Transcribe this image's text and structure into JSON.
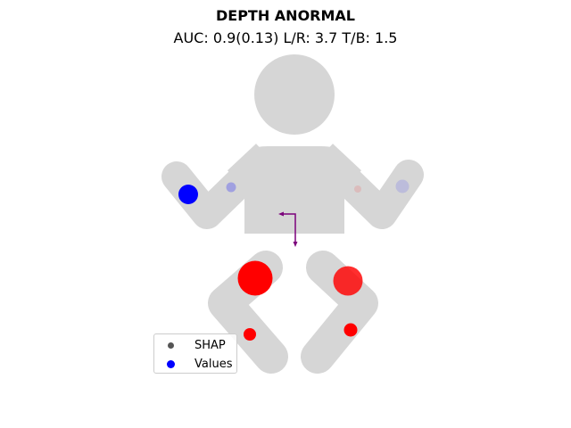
{
  "title": "DEPTH ANORMAL",
  "subtitle": "AUC: 0.9(0.13) L/R: 3.7 T/B: 1.5",
  "body_color": "#d6d6d6",
  "arrow_color": "#7b007b",
  "legend": {
    "items": [
      {
        "label": "SHAP",
        "color": "#555555"
      },
      {
        "label": "Values",
        "color": "#0000ff"
      }
    ]
  },
  "markers": [
    {
      "name": "left-hand-marker",
      "color": "#0000ff",
      "opacity": 1.0
    },
    {
      "name": "left-elbow-marker",
      "color": "#0000ff",
      "opacity": 0.25
    },
    {
      "name": "right-elbow-marker",
      "color": "#ff0000",
      "opacity": 0.12
    },
    {
      "name": "right-hand-marker",
      "color": "#0000ff",
      "opacity": 0.12
    },
    {
      "name": "left-knee-marker",
      "color": "#ff0000",
      "opacity": 1.0
    },
    {
      "name": "right-knee-marker",
      "color": "#ff0000",
      "opacity": 0.82
    },
    {
      "name": "left-foot-marker",
      "color": "#ff0000",
      "opacity": 1.0
    },
    {
      "name": "right-foot-marker",
      "color": "#ff0000",
      "opacity": 1.0
    }
  ]
}
